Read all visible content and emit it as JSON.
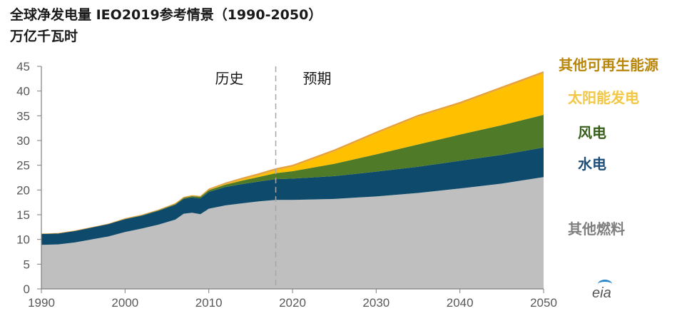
{
  "chart_data": {
    "type": "area",
    "title": "全球净发电量 IEO2019参考情景（1990-2050）",
    "ylabel": "万亿千瓦时",
    "xlim": [
      1990,
      2050
    ],
    "ylim": [
      0,
      45
    ],
    "x_ticks": [
      1990,
      2000,
      2010,
      2020,
      2030,
      2040,
      2050
    ],
    "y_ticks": [
      0,
      5,
      10,
      15,
      20,
      25,
      30,
      35,
      40,
      45
    ],
    "divider_year": 2018,
    "phase_labels": {
      "history": "历史",
      "projection": "预期"
    },
    "x": [
      1990,
      1992,
      1994,
      1996,
      1998,
      2000,
      2002,
      2004,
      2006,
      2007,
      2008,
      2009,
      2010,
      2012,
      2014,
      2016,
      2018,
      2020,
      2025,
      2030,
      2035,
      2040,
      2045,
      2050
    ],
    "series": [
      {
        "name": "其他燃料",
        "color": "#bfbfbf",
        "values": [
          8.9,
          9.0,
          9.4,
          10.0,
          10.6,
          11.5,
          12.2,
          13.0,
          14.0,
          15.2,
          15.4,
          15.1,
          16.2,
          16.9,
          17.3,
          17.7,
          18.0,
          18.0,
          18.2,
          18.7,
          19.4,
          20.3,
          21.3,
          22.6
        ]
      },
      {
        "name": "水电",
        "color": "#0d4a6b",
        "values": [
          2.2,
          2.2,
          2.3,
          2.4,
          2.5,
          2.6,
          2.6,
          2.8,
          3.0,
          3.0,
          3.1,
          3.2,
          3.4,
          3.7,
          3.9,
          4.0,
          4.2,
          4.3,
          4.6,
          5.0,
          5.3,
          5.6,
          5.8,
          6.0
        ]
      },
      {
        "name": "风电",
        "color": "#4f7a28",
        "values": [
          0,
          0,
          0,
          0,
          0,
          0.05,
          0.07,
          0.1,
          0.15,
          0.2,
          0.25,
          0.3,
          0.35,
          0.5,
          0.7,
          0.95,
          1.2,
          1.5,
          2.5,
          3.5,
          4.5,
          5.3,
          6.0,
          6.6
        ]
      },
      {
        "name": "太阳能发电",
        "color": "#ffc000",
        "values": [
          0,
          0,
          0,
          0,
          0,
          0,
          0,
          0,
          0,
          0,
          0,
          0,
          0.03,
          0.1,
          0.2,
          0.35,
          0.6,
          0.9,
          2.5,
          4.2,
          5.6,
          6.2,
          7.4,
          8.4
        ]
      },
      {
        "name": "其他可再生能源",
        "color": "#e6a23c",
        "values": [
          0.1,
          0.1,
          0.1,
          0.1,
          0.1,
          0.15,
          0.15,
          0.15,
          0.2,
          0.2,
          0.2,
          0.2,
          0.3,
          0.3,
          0.4,
          0.4,
          0.4,
          0.4,
          0.4,
          0.4,
          0.4,
          0.4,
          0.4,
          0.4
        ]
      }
    ],
    "legend": [
      {
        "label": "其他可再生能源",
        "color": "#b8860b"
      },
      {
        "label": "太阳能发电",
        "color": "#f2c744"
      },
      {
        "label": "风电",
        "color": "#375f1b"
      },
      {
        "label": "水电",
        "color": "#1f4e79"
      },
      {
        "label": "其他燃料",
        "color": "#7f7f7f"
      }
    ]
  },
  "logo_text": "eia"
}
